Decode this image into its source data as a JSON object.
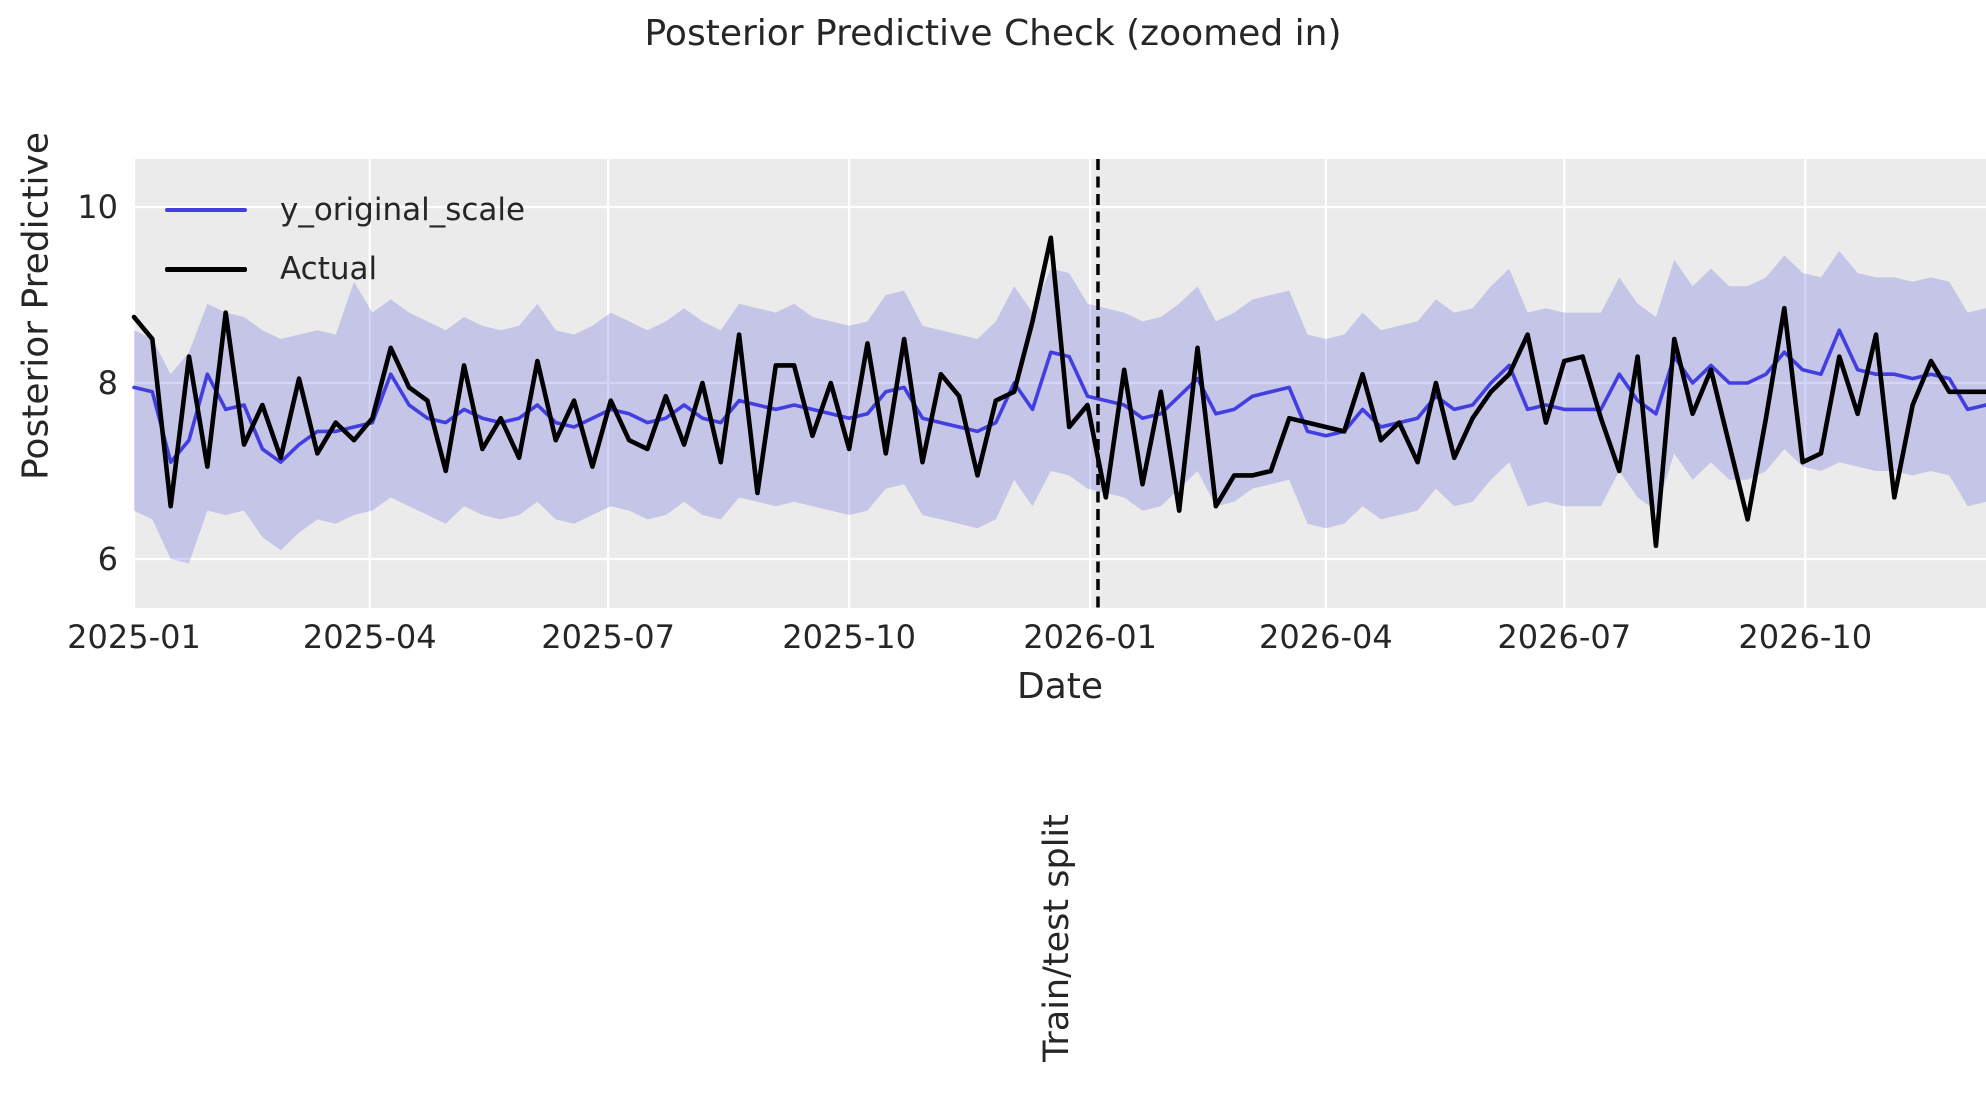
{
  "title": "Posterior Predictive Check (zoomed in)",
  "colors": {
    "plot_background": "#ebebeb",
    "gridline": "#ffffff",
    "predicted_line": "#423ee0",
    "actual_line": "#000000",
    "band_fill": "#423ee0",
    "band_opacity": 0.22,
    "text": "#262626",
    "split_line": "#000000"
  },
  "legend": {
    "items": [
      {
        "label": "y_original_scale",
        "color": "#423ee0",
        "thickness": 4.5
      },
      {
        "label": "Actual",
        "color": "#000000",
        "thickness": 5
      }
    ]
  },
  "x_axis": {
    "label": "Date",
    "ticks": [
      {
        "label": "2025-01",
        "date": "2025-01-01"
      },
      {
        "label": "2025-04",
        "date": "2025-04-01"
      },
      {
        "label": "2025-07",
        "date": "2025-07-01"
      },
      {
        "label": "2025-10",
        "date": "2025-10-01"
      },
      {
        "label": "2026-01",
        "date": "2026-01-01"
      },
      {
        "label": "2026-04",
        "date": "2026-04-01"
      },
      {
        "label": "2026-07",
        "date": "2026-07-01"
      },
      {
        "label": "2026-10",
        "date": "2026-10-01"
      }
    ]
  },
  "y_axis": {
    "label": "Posterior Predictive",
    "ticks": [
      {
        "label": "10",
        "value": 10
      },
      {
        "label": "8",
        "value": 8
      },
      {
        "label": "6",
        "value": 6
      }
    ]
  },
  "annotations": {
    "split_label": "Train/test split",
    "split_date": "2026-01-04"
  },
  "chart_data": {
    "type": "line",
    "title": "Posterior Predictive Check (zoomed in)",
    "xlabel": "Date",
    "ylabel": "Posterior Predictive",
    "x_start_date": "2025-01-01",
    "x_freq_days": 7,
    "n_points": 102,
    "ylim": [
      5.44,
      10.55
    ],
    "yticks": [
      6,
      8,
      10
    ],
    "grid": true,
    "legend_position": "upper left",
    "xtick_labels": [
      "2025-01",
      "2025-04",
      "2025-07",
      "2025-10",
      "2026-01",
      "2026-04",
      "2026-07",
      "2026-10"
    ],
    "band": {
      "upper_series": "hdi_upper",
      "lower_series": "hdi_lower",
      "meaning": "posterior predictive interval"
    },
    "vline": {
      "date": "2026-01-04",
      "label": "Train/test split",
      "style": "dashed"
    },
    "series": [
      {
        "name": "y_original_scale",
        "role": "posterior-mean",
        "values": [
          7.95,
          7.9,
          7.1,
          7.35,
          8.1,
          7.7,
          7.75,
          7.25,
          7.1,
          7.3,
          7.45,
          7.45,
          7.5,
          7.55,
          8.1,
          7.75,
          7.6,
          7.55,
          7.7,
          7.6,
          7.55,
          7.6,
          7.75,
          7.55,
          7.5,
          7.6,
          7.7,
          7.65,
          7.55,
          7.6,
          7.75,
          7.6,
          7.55,
          7.8,
          7.75,
          7.7,
          7.75,
          7.7,
          7.65,
          7.6,
          7.65,
          7.9,
          7.95,
          7.6,
          7.55,
          7.5,
          7.45,
          7.55,
          8.0,
          7.7,
          8.35,
          8.3,
          7.85,
          7.8,
          7.75,
          7.6,
          7.65,
          7.85,
          8.05,
          7.65,
          7.7,
          7.85,
          7.9,
          7.95,
          7.45,
          7.4,
          7.45,
          7.7,
          7.5,
          7.55,
          7.6,
          7.85,
          7.7,
          7.75,
          8.0,
          8.2,
          7.7,
          7.75,
          7.7,
          7.7,
          7.7,
          8.1,
          7.8,
          7.65,
          8.3,
          8.0,
          8.2,
          8.0,
          8.0,
          8.1,
          8.35,
          8.15,
          8.1,
          8.6,
          8.15,
          8.1,
          8.1,
          8.05,
          8.1,
          8.05,
          7.7,
          7.75
        ]
      },
      {
        "name": "Actual",
        "role": "observed",
        "values": [
          8.75,
          8.5,
          6.6,
          8.3,
          7.05,
          8.8,
          7.3,
          7.75,
          7.15,
          8.05,
          7.2,
          7.55,
          7.35,
          7.6,
          8.4,
          7.95,
          7.8,
          7.0,
          8.2,
          7.25,
          7.6,
          7.15,
          8.25,
          7.35,
          7.8,
          7.05,
          7.8,
          7.35,
          7.25,
          7.85,
          7.3,
          8.0,
          7.1,
          8.55,
          6.75,
          8.2,
          8.2,
          7.4,
          8.0,
          7.25,
          8.45,
          7.2,
          8.5,
          7.1,
          8.1,
          7.85,
          6.95,
          7.8,
          7.9,
          8.7,
          9.65,
          7.5,
          7.75,
          6.7,
          8.15,
          6.85,
          7.9,
          6.55,
          8.4,
          6.6,
          6.95,
          6.95,
          7.0,
          7.6,
          7.55,
          7.5,
          7.45,
          8.1,
          7.35,
          7.55,
          7.1,
          8.0,
          7.15,
          7.6,
          7.9,
          8.1,
          8.55,
          7.55,
          8.25,
          8.3,
          7.6,
          7.0,
          8.3,
          6.15,
          8.5,
          7.65,
          8.15,
          7.3,
          6.45,
          7.6,
          8.85,
          7.1,
          7.2,
          8.3,
          7.65,
          8.55,
          6.7,
          7.75,
          8.25,
          7.9,
          7.9,
          7.9
        ]
      },
      {
        "name": "hdi_upper",
        "role": "band-upper",
        "values": [
          8.6,
          8.5,
          8.1,
          8.35,
          8.9,
          8.8,
          8.75,
          8.6,
          8.5,
          8.55,
          8.6,
          8.55,
          9.15,
          8.8,
          8.95,
          8.8,
          8.7,
          8.6,
          8.75,
          8.65,
          8.6,
          8.65,
          8.9,
          8.6,
          8.55,
          8.65,
          8.8,
          8.7,
          8.6,
          8.7,
          8.85,
          8.7,
          8.6,
          8.9,
          8.85,
          8.8,
          8.9,
          8.75,
          8.7,
          8.65,
          8.7,
          9.0,
          9.05,
          8.65,
          8.6,
          8.55,
          8.5,
          8.7,
          9.1,
          8.8,
          9.3,
          9.25,
          8.9,
          8.85,
          8.8,
          8.7,
          8.75,
          8.9,
          9.1,
          8.7,
          8.8,
          8.95,
          9.0,
          9.05,
          8.55,
          8.5,
          8.55,
          8.8,
          8.6,
          8.65,
          8.7,
          8.95,
          8.8,
          8.85,
          9.1,
          9.3,
          8.8,
          8.85,
          8.8,
          8.8,
          8.8,
          9.2,
          8.9,
          8.75,
          9.4,
          9.1,
          9.3,
          9.1,
          9.1,
          9.2,
          9.45,
          9.25,
          9.2,
          9.5,
          9.25,
          9.2,
          9.2,
          9.15,
          9.2,
          9.15,
          8.8,
          8.85
        ]
      },
      {
        "name": "hdi_lower",
        "role": "band-lower",
        "values": [
          6.55,
          6.45,
          6.0,
          5.95,
          6.55,
          6.5,
          6.55,
          6.25,
          6.1,
          6.3,
          6.45,
          6.4,
          6.5,
          6.55,
          6.7,
          6.6,
          6.5,
          6.4,
          6.6,
          6.5,
          6.45,
          6.5,
          6.65,
          6.45,
          6.4,
          6.5,
          6.6,
          6.55,
          6.45,
          6.5,
          6.65,
          6.5,
          6.45,
          6.7,
          6.65,
          6.6,
          6.65,
          6.6,
          6.55,
          6.5,
          6.55,
          6.8,
          6.85,
          6.5,
          6.45,
          6.4,
          6.35,
          6.45,
          6.9,
          6.6,
          7.0,
          6.95,
          6.8,
          6.75,
          6.7,
          6.55,
          6.6,
          6.8,
          7.0,
          6.6,
          6.65,
          6.8,
          6.85,
          6.9,
          6.4,
          6.35,
          6.4,
          6.6,
          6.45,
          6.5,
          6.55,
          6.8,
          6.6,
          6.65,
          6.9,
          7.1,
          6.6,
          6.65,
          6.6,
          6.6,
          6.6,
          7.0,
          6.7,
          6.55,
          7.2,
          6.9,
          7.1,
          6.9,
          6.9,
          7.0,
          7.25,
          7.05,
          7.0,
          7.1,
          7.05,
          7.0,
          7.0,
          6.95,
          7.0,
          6.95,
          6.6,
          6.65
        ]
      }
    ]
  }
}
